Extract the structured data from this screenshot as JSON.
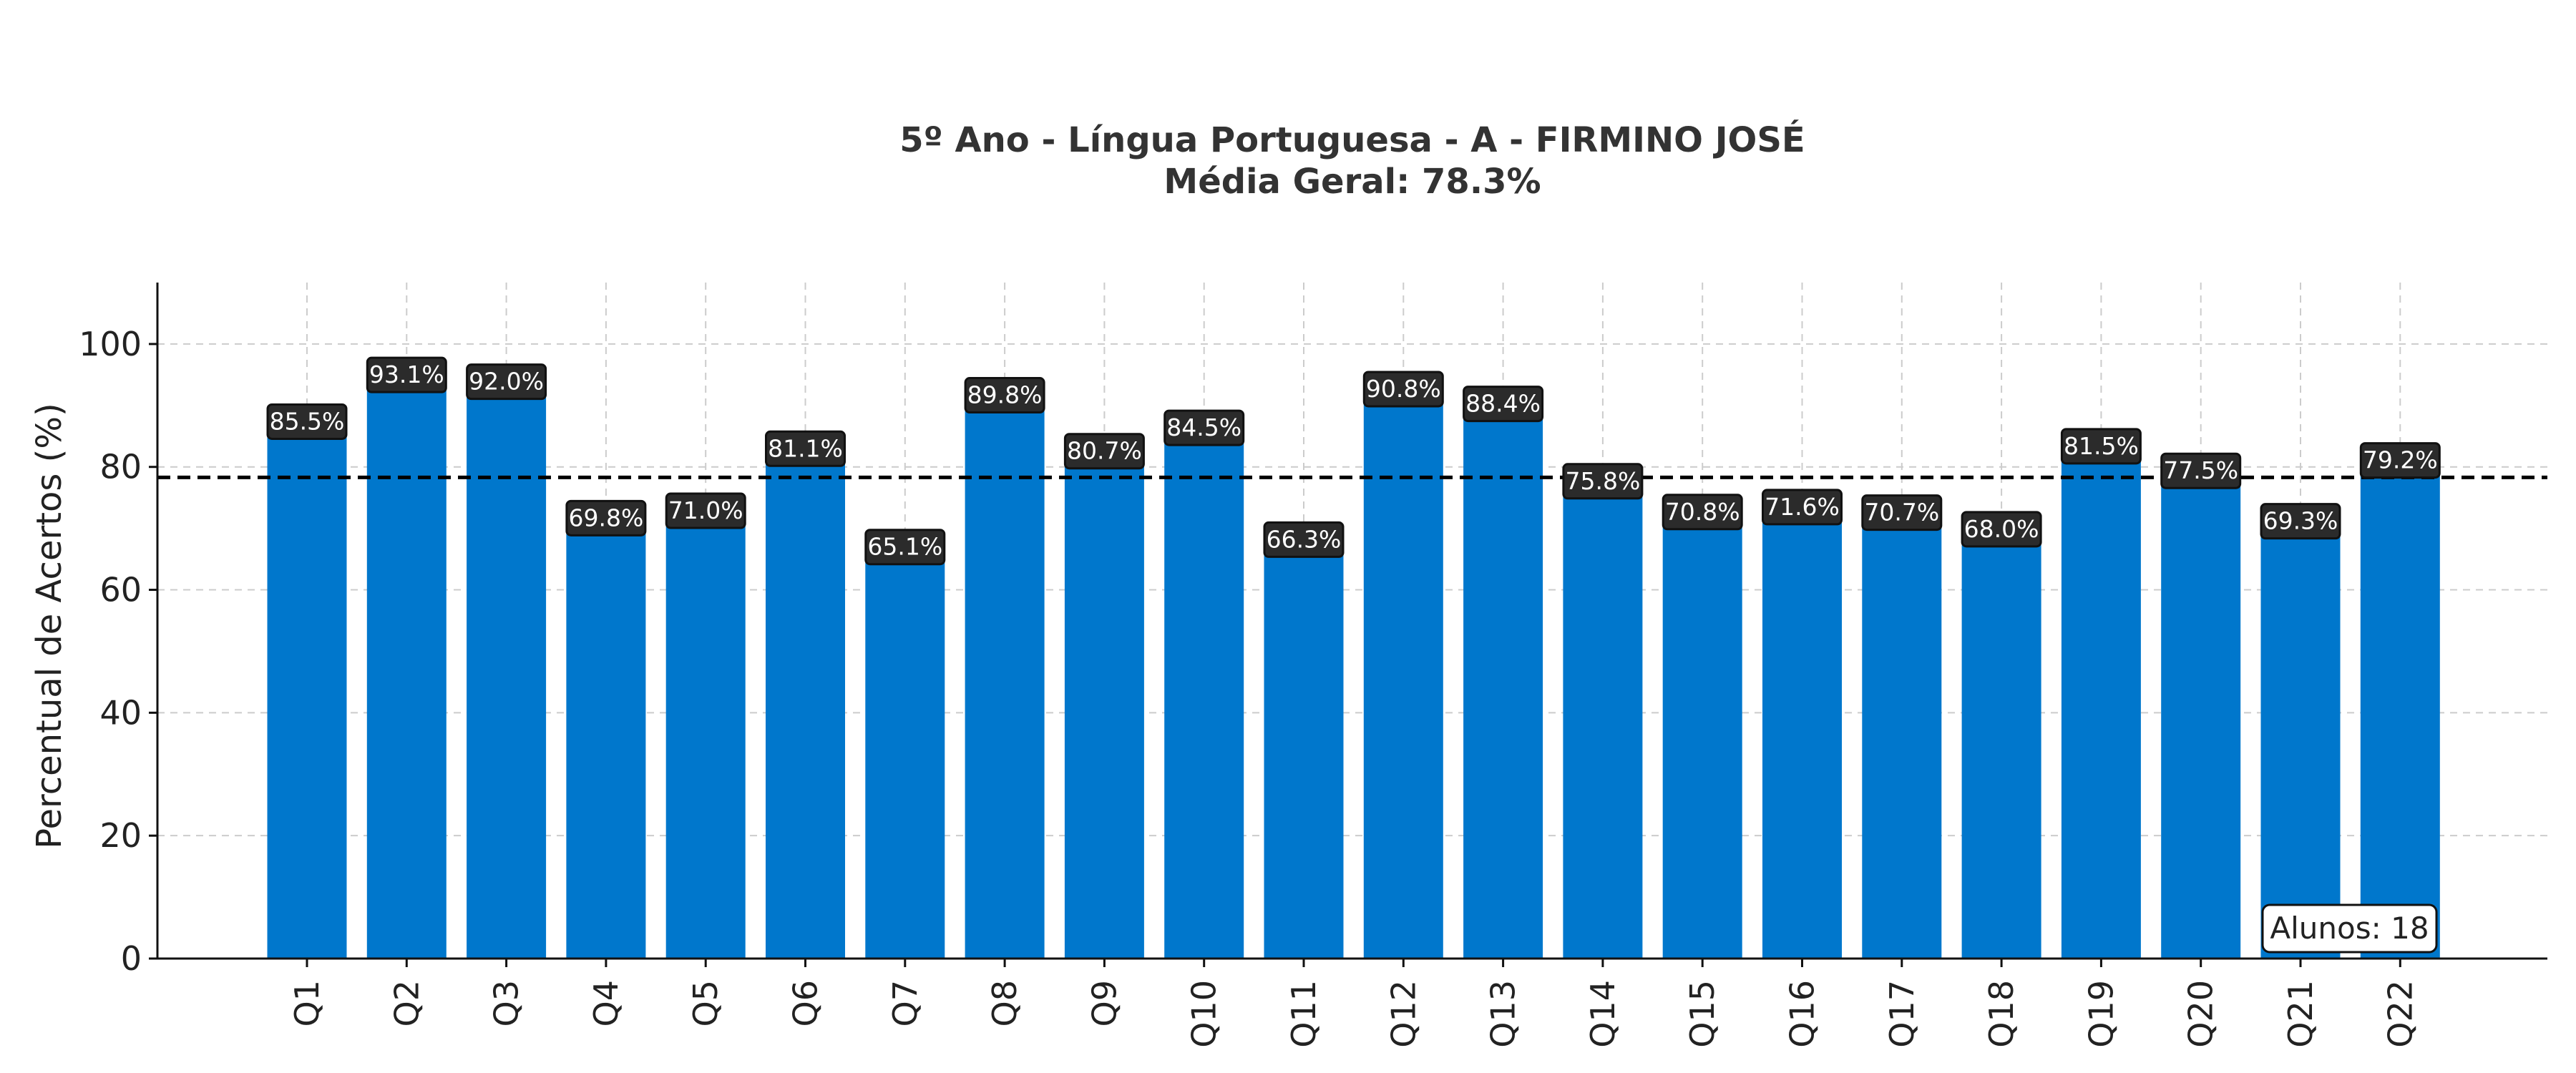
{
  "chart_data": {
    "type": "bar",
    "title": "5º Ano - Língua Portuguesa - A - FIRMINO JOSÉ",
    "subtitle": "Média Geral: 78.3%",
    "xlabel": "",
    "ylabel": "Percentual de Acertos (%)",
    "ylim": [
      0,
      110
    ],
    "yticks": [
      0,
      20,
      40,
      60,
      80,
      100
    ],
    "ytick_labels": [
      "0",
      "20",
      "40",
      "60",
      "80",
      "100"
    ],
    "categories": [
      "Q1",
      "Q2",
      "Q3",
      "Q4",
      "Q5",
      "Q6",
      "Q7",
      "Q8",
      "Q9",
      "Q10",
      "Q11",
      "Q12",
      "Q13",
      "Q14",
      "Q15",
      "Q16",
      "Q17",
      "Q18",
      "Q19",
      "Q20",
      "Q21",
      "Q22"
    ],
    "values": [
      85.5,
      93.1,
      92.0,
      69.8,
      71.0,
      81.1,
      65.1,
      89.8,
      80.7,
      84.5,
      66.3,
      90.8,
      88.4,
      75.8,
      70.8,
      71.6,
      70.7,
      68.0,
      81.5,
      77.5,
      69.3,
      79.2
    ],
    "data_labels": [
      "85.5%",
      "93.1%",
      "92.0%",
      "69.8%",
      "71.0%",
      "81.1%",
      "65.1%",
      "89.8%",
      "80.7%",
      "84.5%",
      "66.3%",
      "90.8%",
      "88.4%",
      "75.8%",
      "70.8%",
      "71.6%",
      "70.7%",
      "68.0%",
      "81.5%",
      "77.5%",
      "69.3%",
      "79.2%"
    ],
    "average_line": 78.3,
    "grid": true,
    "annotation": "Alunos: 18",
    "colors": {
      "bar": "#0077cc",
      "average_line": "#000000",
      "grid": "#cccccc",
      "label_box": "#2b2b2b"
    }
  }
}
